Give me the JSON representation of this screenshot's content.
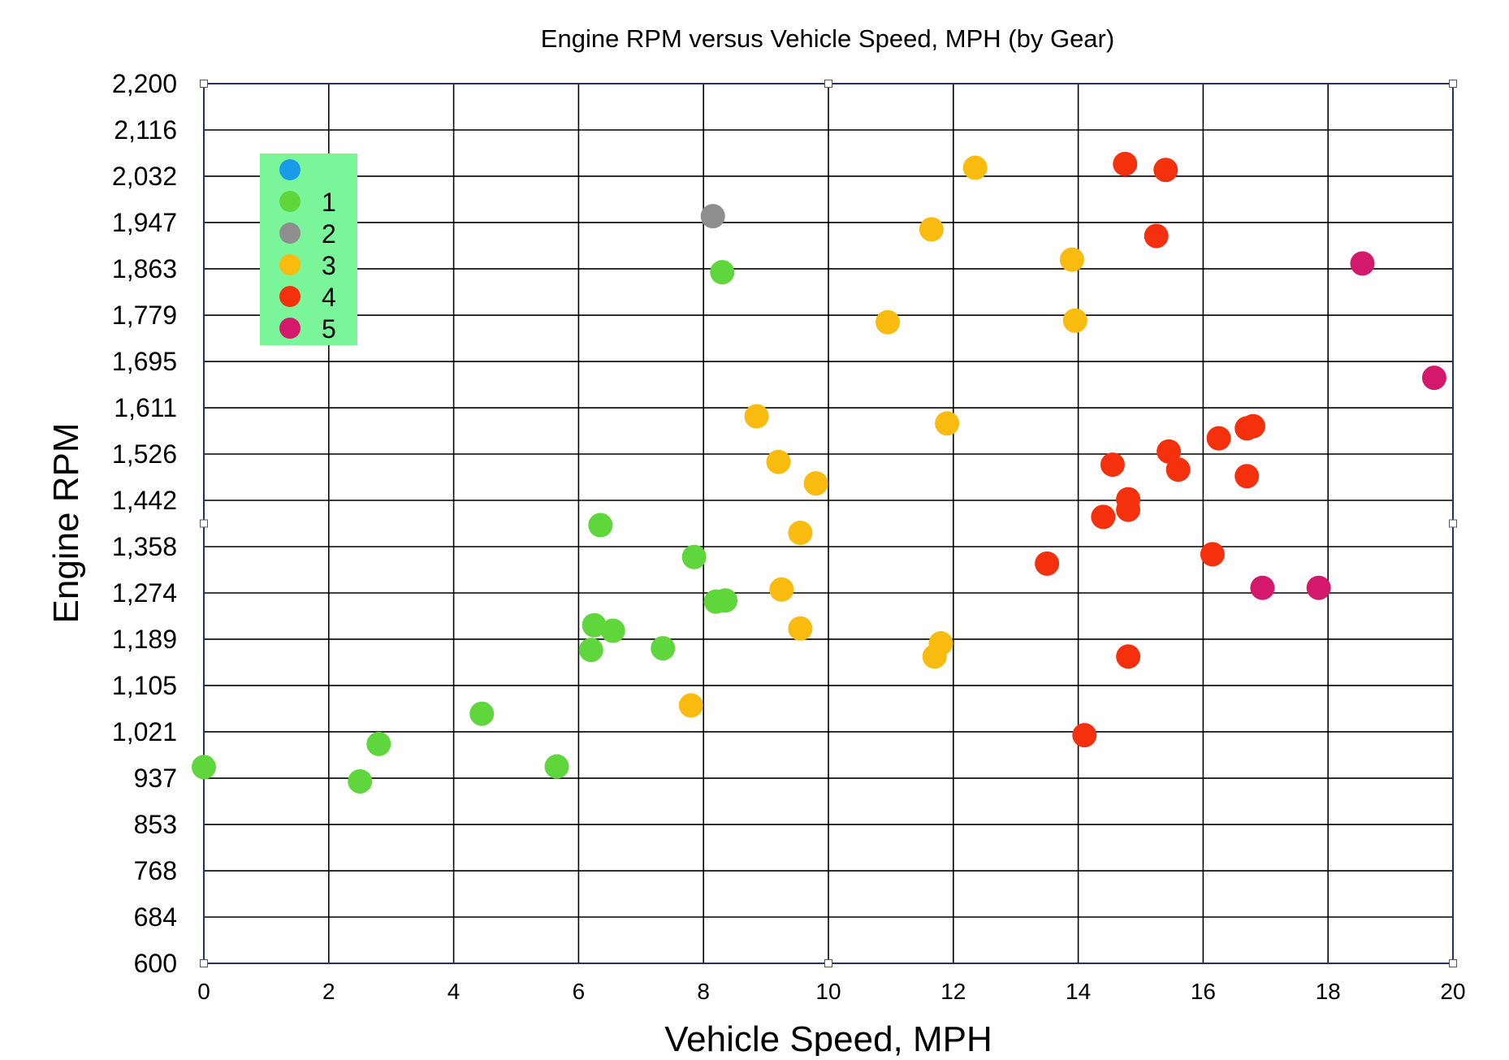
{
  "chart_data": {
    "type": "scatter",
    "title": "Engine RPM versus Vehicle Speed, MPH (by Gear)",
    "xlabel": "Vehicle Speed, MPH",
    "ylabel": "Engine RPM",
    "xlim": [
      0,
      20
    ],
    "ylim": [
      600,
      2200
    ],
    "grid": true,
    "x_ticks": [
      "0",
      "2",
      "4",
      "6",
      "8",
      "10",
      "12",
      "14",
      "16",
      "18",
      "20"
    ],
    "x_tick_values": [
      0,
      2,
      4,
      6,
      8,
      10,
      12,
      14,
      16,
      18,
      20
    ],
    "y_ticks": [
      "600",
      "684",
      "768",
      "853",
      "937",
      "1,021",
      "1,105",
      "1,189",
      "1,274",
      "1,358",
      "1,442",
      "1,526",
      "1,611",
      "1,695",
      "1,779",
      "1,863",
      "1,947",
      "2,032",
      "2,116",
      "2,200"
    ],
    "y_tick_values": [
      600,
      684.2,
      768.4,
      852.6,
      936.8,
      1021.1,
      1105.3,
      1189.5,
      1273.7,
      1357.9,
      1442.1,
      1526.3,
      1610.5,
      1694.7,
      1778.9,
      1863.2,
      1947.4,
      2031.6,
      2115.8,
      2200
    ],
    "legend_position": "top-left",
    "series": [
      {
        "name": "",
        "color": "#1a9bea",
        "points": []
      },
      {
        "name": "1",
        "color": "#5fd63c",
        "points": [
          [
            0.0,
            957
          ],
          [
            2.5,
            931
          ],
          [
            2.8,
            999
          ],
          [
            4.45,
            1054
          ],
          [
            5.65,
            958
          ],
          [
            6.2,
            1170
          ],
          [
            6.25,
            1215
          ],
          [
            6.35,
            1397
          ],
          [
            6.55,
            1205
          ],
          [
            7.35,
            1173
          ],
          [
            7.85,
            1339
          ],
          [
            8.2,
            1258
          ],
          [
            8.35,
            1260
          ],
          [
            8.3,
            1857
          ]
        ]
      },
      {
        "name": "2",
        "color": "#8e8e8e",
        "points": [
          [
            8.15,
            1959
          ]
        ]
      },
      {
        "name": "3",
        "color": "#f9bb0e",
        "points": [
          [
            7.8,
            1069
          ],
          [
            8.85,
            1595
          ],
          [
            9.2,
            1512
          ],
          [
            9.25,
            1280
          ],
          [
            9.55,
            1209
          ],
          [
            9.55,
            1383
          ],
          [
            9.8,
            1473
          ],
          [
            10.95,
            1766
          ],
          [
            11.65,
            1935
          ],
          [
            11.7,
            1158
          ],
          [
            11.8,
            1182
          ],
          [
            11.9,
            1582
          ],
          [
            12.35,
            2047
          ],
          [
            13.9,
            1880
          ],
          [
            13.95,
            1769
          ]
        ]
      },
      {
        "name": "4",
        "color": "#f5300d",
        "points": [
          [
            13.5,
            1327
          ],
          [
            14.1,
            1015
          ],
          [
            14.4,
            1412
          ],
          [
            14.55,
            1507
          ],
          [
            14.75,
            2054
          ],
          [
            14.8,
            1425
          ],
          [
            14.8,
            1444
          ],
          [
            14.8,
            1158
          ],
          [
            15.25,
            1923
          ],
          [
            15.4,
            2043
          ],
          [
            15.45,
            1531
          ],
          [
            15.6,
            1498
          ],
          [
            16.15,
            1344
          ],
          [
            16.25,
            1555
          ],
          [
            16.7,
            1573
          ],
          [
            16.8,
            1577
          ],
          [
            16.7,
            1486
          ]
        ]
      },
      {
        "name": "5",
        "color": "#d4196c",
        "points": [
          [
            16.95,
            1283
          ],
          [
            17.85,
            1283
          ],
          [
            18.55,
            1873
          ],
          [
            19.7,
            1665
          ]
        ]
      }
    ]
  }
}
